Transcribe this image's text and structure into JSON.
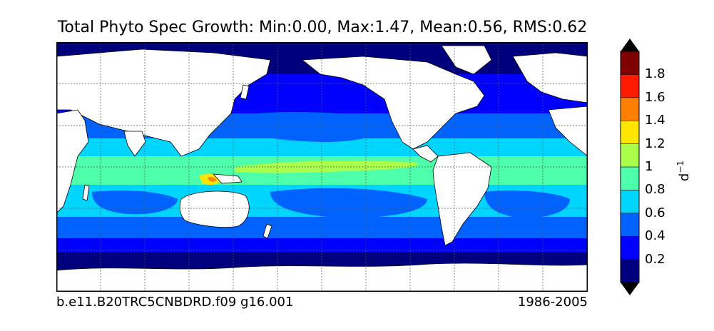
{
  "title": "Total Phyto Spec Growth: Min:0.00, Max:1.47, Mean:0.56, RMS:0.62",
  "caption_left": "b.e11.B20TRC5CNBDRD.f09 g16.001",
  "caption_right": "1986-2005",
  "colorbar": {
    "unit_base": "d",
    "unit_exp": "−1",
    "levels": [
      0,
      0.2,
      0.4,
      0.6,
      0.8,
      1.0,
      1.2,
      1.4,
      1.6,
      1.8,
      2.0
    ],
    "colors": [
      "#00007f",
      "#0000ff",
      "#0063ff",
      "#00d5ff",
      "#4dffaa",
      "#aaff4d",
      "#ffe600",
      "#ff8000",
      "#ff1a00",
      "#7f0000"
    ],
    "extend_low_color": "#000000",
    "extend_high_color": "#000000",
    "tick_labels": [
      "0.2",
      "0.4",
      "0.6",
      "0.8",
      "1",
      "1.2",
      "1.4",
      "1.6",
      "1.8"
    ]
  },
  "map": {
    "projection": "cylindrical",
    "gridlines": "dotted",
    "land_color": "#ffffff"
  }
}
